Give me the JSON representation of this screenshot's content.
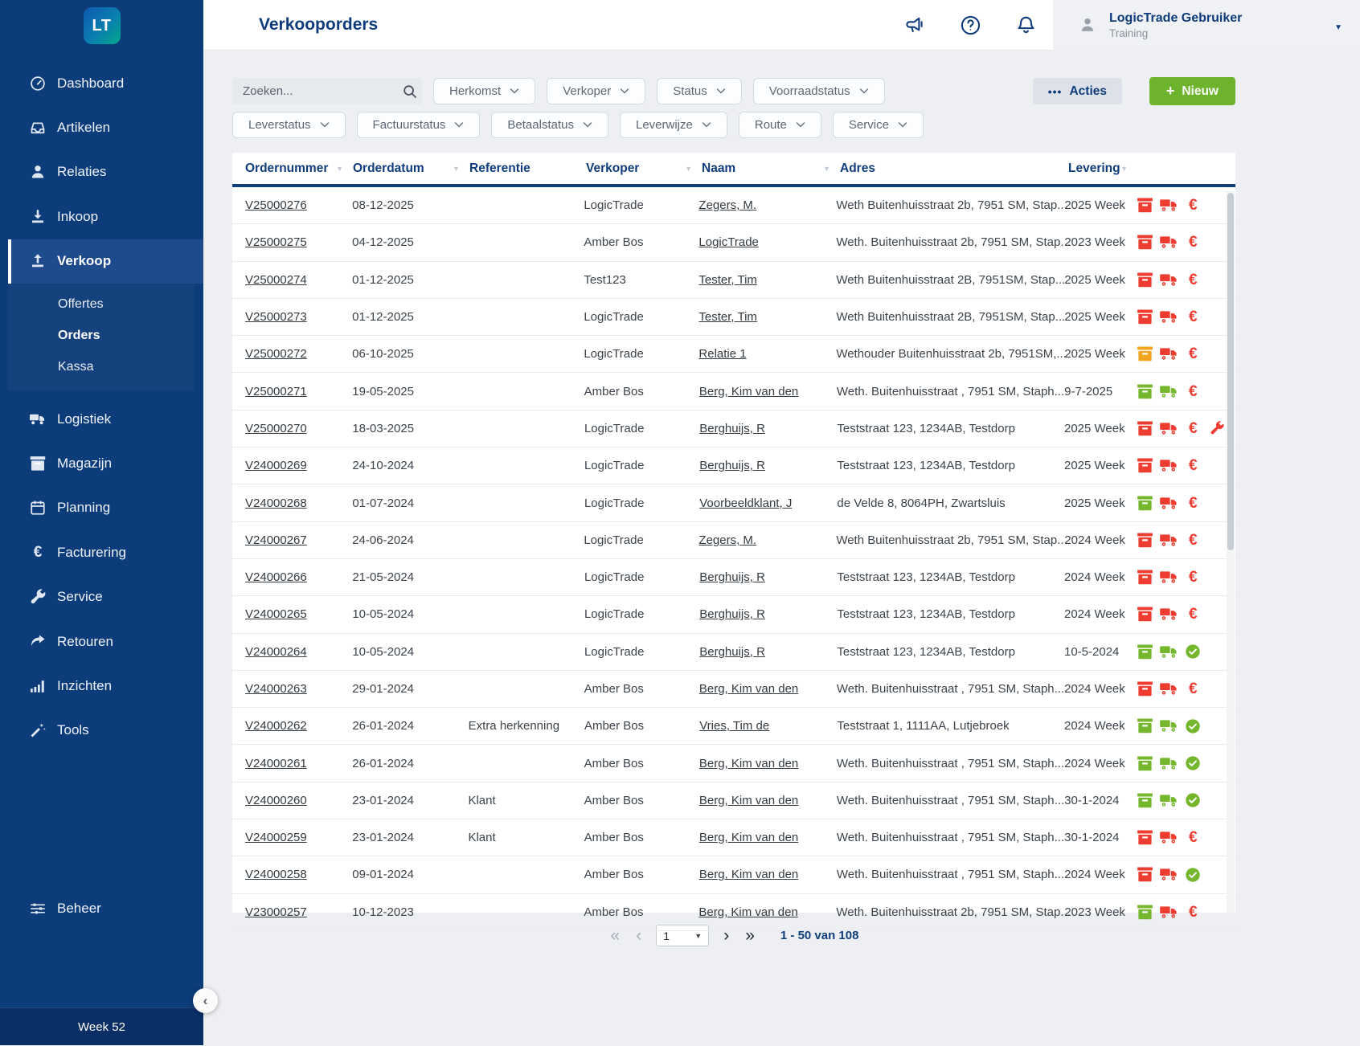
{
  "app": {
    "logo_text": "LT",
    "week_label": "Week 52"
  },
  "sidebar": {
    "items": [
      {
        "id": "dashboard",
        "label": "Dashboard",
        "icon": "dashboard"
      },
      {
        "id": "artikelen",
        "label": "Artikelen",
        "icon": "inbox"
      },
      {
        "id": "relaties",
        "label": "Relaties",
        "icon": "person"
      },
      {
        "id": "inkoop",
        "label": "Inkoop",
        "icon": "download"
      },
      {
        "id": "verkoop",
        "label": "Verkoop",
        "icon": "upload",
        "active": true,
        "children": [
          {
            "id": "offertes",
            "label": "Offertes"
          },
          {
            "id": "orders",
            "label": "Orders",
            "active": true
          },
          {
            "id": "kassa",
            "label": "Kassa"
          }
        ]
      },
      {
        "id": "logistiek",
        "label": "Logistiek",
        "icon": "truck"
      },
      {
        "id": "magazijn",
        "label": "Magazijn",
        "icon": "box"
      },
      {
        "id": "planning",
        "label": "Planning",
        "icon": "calendar"
      },
      {
        "id": "facturering",
        "label": "Facturering",
        "icon": "euro"
      },
      {
        "id": "service",
        "label": "Service",
        "icon": "wrench"
      },
      {
        "id": "retouren",
        "label": "Retouren",
        "icon": "return-arrow"
      },
      {
        "id": "inzichten",
        "label": "Inzichten",
        "icon": "bar-chart"
      },
      {
        "id": "tools",
        "label": "Tools",
        "icon": "magic-wand"
      }
    ],
    "bottom_item": {
      "id": "beheer",
      "label": "Beheer",
      "icon": "sliders"
    }
  },
  "header": {
    "title": "Verkooporders",
    "user_name": "LogicTrade Gebruiker",
    "user_sub": "Training"
  },
  "filters": {
    "search_placeholder": "Zoeken...",
    "row1": [
      "Herkomst",
      "Verkoper",
      "Status",
      "Voorraadstatus"
    ],
    "row2": [
      "Leverstatus",
      "Factuurstatus",
      "Betaalstatus",
      "Leverwijze",
      "Route",
      "Service"
    ],
    "actions_label": "Acties",
    "new_label": "Nieuw"
  },
  "glyphs": {
    "dropdown_caret": "▼",
    "sort_triangle": "▼",
    "first_page": "«",
    "prev_page": "‹",
    "next_page": "›",
    "last_page": "»",
    "collapse": "‹",
    "actions_dots": "•••",
    "plus": "+",
    "euro": "€"
  },
  "table": {
    "columns": [
      {
        "key": "ordernummer",
        "label": "Ordernummer",
        "sortable": true
      },
      {
        "key": "orderdatum",
        "label": "Orderdatum",
        "sortable": true
      },
      {
        "key": "referentie",
        "label": "Referentie",
        "sortable": false
      },
      {
        "key": "verkoper",
        "label": "Verkoper",
        "sortable": true
      },
      {
        "key": "naam",
        "label": "Naam",
        "sortable": true
      },
      {
        "key": "adres",
        "label": "Adres",
        "sortable": false
      },
      {
        "key": "levering",
        "label": "Levering",
        "sortable": true
      }
    ],
    "rows": [
      {
        "ordernummer": "V25000276",
        "orderdatum": "08-12-2025",
        "referentie": "",
        "verkoper": "LogicTrade",
        "naam": "Zegers, M.",
        "adres": "Weth Buitenhuisstraat 2b, 7951 SM, Stap...",
        "levering": "2025 Week",
        "magazijn": "red",
        "transport": "red",
        "betaling": "euro-red",
        "service": false
      },
      {
        "ordernummer": "V25000275",
        "orderdatum": "04-12-2025",
        "referentie": "",
        "verkoper": "Amber Bos",
        "naam": "LogicTrade",
        "adres": "Weth. Buitenhuisstraat 2b, 7951 SM, Stap...",
        "levering": "2023 Week",
        "magazijn": "red",
        "transport": "red",
        "betaling": "euro-red",
        "service": false
      },
      {
        "ordernummer": "V25000274",
        "orderdatum": "01-12-2025",
        "referentie": "",
        "verkoper": "Test123",
        "naam": "Tester, Tim",
        "adres": "Weth Buitenhuisstraat 2B, 7951SM, Stap...",
        "levering": "2025 Week",
        "magazijn": "red",
        "transport": "red",
        "betaling": "euro-red",
        "service": false
      },
      {
        "ordernummer": "V25000273",
        "orderdatum": "01-12-2025",
        "referentie": "",
        "verkoper": "LogicTrade",
        "naam": "Tester, Tim",
        "adres": "Weth Buitenhuisstraat 2B, 7951SM, Stap...",
        "levering": "2025 Week",
        "magazijn": "red",
        "transport": "red",
        "betaling": "euro-red",
        "service": false
      },
      {
        "ordernummer": "V25000272",
        "orderdatum": "06-10-2025",
        "referentie": "",
        "verkoper": "LogicTrade",
        "naam": "Relatie 1",
        "adres": "Wethouder Buitenhuisstraat 2b, 7951SM,...",
        "levering": "2025 Week",
        "magazijn": "orange",
        "transport": "red",
        "betaling": "euro-red",
        "service": false
      },
      {
        "ordernummer": "V25000271",
        "orderdatum": "19-05-2025",
        "referentie": "",
        "verkoper": "Amber Bos",
        "naam": "Berg, Kim van den",
        "adres": "Weth. Buitenhuisstraat , 7951 SM, Staph...",
        "levering": "9-7-2025",
        "magazijn": "green",
        "transport": "green",
        "betaling": "euro-red",
        "service": false
      },
      {
        "ordernummer": "V25000270",
        "orderdatum": "18-03-2025",
        "referentie": "",
        "verkoper": "LogicTrade",
        "naam": "Berghuijs, R",
        "adres": "Teststraat 123, 1234AB, Testdorp",
        "levering": "2025 Week",
        "magazijn": "red",
        "transport": "red",
        "betaling": "euro-red",
        "service": true
      },
      {
        "ordernummer": "V24000269",
        "orderdatum": "24-10-2024",
        "referentie": "",
        "verkoper": "LogicTrade",
        "naam": "Berghuijs, R",
        "adres": "Teststraat 123, 1234AB, Testdorp",
        "levering": "2025 Week",
        "magazijn": "red",
        "transport": "red",
        "betaling": "euro-red",
        "service": false
      },
      {
        "ordernummer": "V24000268",
        "orderdatum": "01-07-2024",
        "referentie": "",
        "verkoper": "LogicTrade",
        "naam": "Voorbeeldklant, J",
        "adres": "de Velde 8, 8064PH, Zwartsluis",
        "levering": "2025 Week",
        "magazijn": "green",
        "transport": "red",
        "betaling": "euro-red",
        "service": false
      },
      {
        "ordernummer": "V24000267",
        "orderdatum": "24-06-2024",
        "referentie": "",
        "verkoper": "LogicTrade",
        "naam": "Zegers, M.",
        "adres": "Weth Buitenhuisstraat 2b, 7951 SM, Stap...",
        "levering": "2024 Week",
        "magazijn": "red",
        "transport": "red",
        "betaling": "euro-red",
        "service": false
      },
      {
        "ordernummer": "V24000266",
        "orderdatum": "21-05-2024",
        "referentie": "",
        "verkoper": "LogicTrade",
        "naam": "Berghuijs, R",
        "adres": "Teststraat 123, 1234AB, Testdorp",
        "levering": "2024 Week",
        "magazijn": "red",
        "transport": "red",
        "betaling": "euro-red",
        "service": false
      },
      {
        "ordernummer": "V24000265",
        "orderdatum": "10-05-2024",
        "referentie": "",
        "verkoper": "LogicTrade",
        "naam": "Berghuijs, R",
        "adres": "Teststraat 123, 1234AB, Testdorp",
        "levering": "2024 Week",
        "magazijn": "red",
        "transport": "red",
        "betaling": "euro-red",
        "service": false
      },
      {
        "ordernummer": "V24000264",
        "orderdatum": "10-05-2024",
        "referentie": "",
        "verkoper": "LogicTrade",
        "naam": "Berghuijs, R",
        "adres": "Teststraat 123, 1234AB, Testdorp",
        "levering": "10-5-2024",
        "magazijn": "green",
        "transport": "green",
        "betaling": "check-green",
        "service": false
      },
      {
        "ordernummer": "V24000263",
        "orderdatum": "29-01-2024",
        "referentie": "",
        "verkoper": "Amber Bos",
        "naam": "Berg, Kim van den",
        "adres": "Weth. Buitenhuisstraat , 7951 SM, Staph...",
        "levering": "2024 Week",
        "magazijn": "red",
        "transport": "red",
        "betaling": "euro-red",
        "service": false
      },
      {
        "ordernummer": "V24000262",
        "orderdatum": "26-01-2024",
        "referentie": "Extra herkenning",
        "verkoper": "Amber Bos",
        "naam": "Vries, Tim de",
        "adres": "Teststraat 1, 1111AA, Lutjebroek",
        "levering": "2024 Week",
        "magazijn": "green",
        "transport": "green",
        "betaling": "check-green",
        "service": false
      },
      {
        "ordernummer": "V24000261",
        "orderdatum": "26-01-2024",
        "referentie": "",
        "verkoper": "Amber Bos",
        "naam": "Berg, Kim van den",
        "adres": "Weth. Buitenhuisstraat , 7951 SM, Staph...",
        "levering": "2024 Week",
        "magazijn": "green",
        "transport": "green",
        "betaling": "check-green",
        "service": false
      },
      {
        "ordernummer": "V24000260",
        "orderdatum": "23-01-2024",
        "referentie": "Klant",
        "verkoper": "Amber Bos",
        "naam": "Berg, Kim van den",
        "adres": "Weth. Buitenhuisstraat , 7951 SM, Staph...",
        "levering": "30-1-2024",
        "magazijn": "green",
        "transport": "green",
        "betaling": "check-green",
        "service": false
      },
      {
        "ordernummer": "V24000259",
        "orderdatum": "23-01-2024",
        "referentie": "Klant",
        "verkoper": "Amber Bos",
        "naam": "Berg, Kim van den",
        "adres": "Weth. Buitenhuisstraat , 7951 SM, Staph...",
        "levering": "30-1-2024",
        "magazijn": "red",
        "transport": "red",
        "betaling": "euro-red",
        "service": false
      },
      {
        "ordernummer": "V24000258",
        "orderdatum": "09-01-2024",
        "referentie": "",
        "verkoper": "Amber Bos",
        "naam": "Berg, Kim van den",
        "adres": "Weth. Buitenhuisstraat , 7951 SM, Staph...",
        "levering": "2024 Week",
        "magazijn": "red",
        "transport": "red",
        "betaling": "check-green",
        "service": false
      },
      {
        "ordernummer": "V23000257",
        "orderdatum": "10-12-2023",
        "referentie": "",
        "verkoper": "Amber Bos",
        "naam": "Berg, Kim van den",
        "adres": "Weth. Buitenhuisstraat 2b, 7951 SM, Stap...",
        "levering": "2023 Week",
        "magazijn": "green",
        "transport": "red",
        "betaling": "euro-red",
        "service": false
      }
    ]
  },
  "pagination": {
    "page": "1",
    "range_label": "1 - 50 van 108"
  },
  "colors": {
    "sidebar_navy": "#0d3c7a",
    "sidebar_active": "#1d4b8c",
    "brand_navy": "#0f3d7c",
    "button_green": "#6db42c",
    "status_red": "#ee3d30",
    "status_orange": "#f2a51e",
    "status_green": "#74b62c"
  }
}
